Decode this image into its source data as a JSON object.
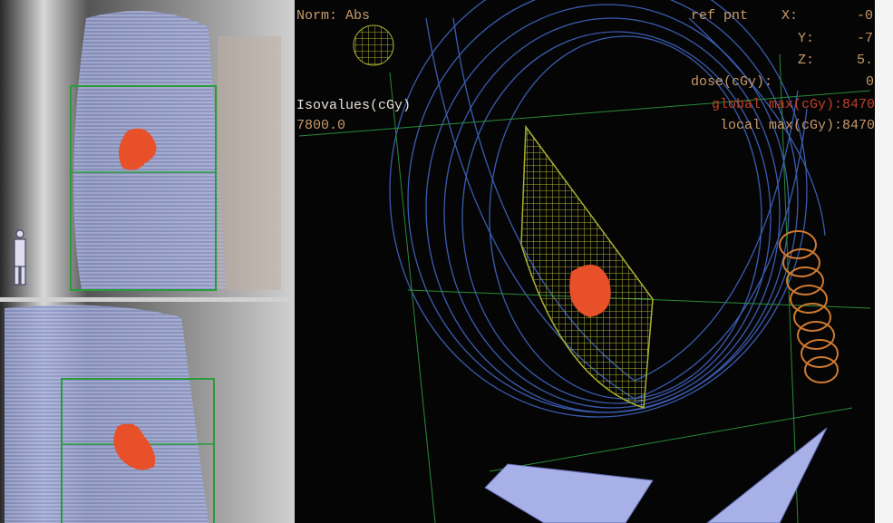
{
  "viewer": {
    "norm_label": "Norm: Abs",
    "isovalues": {
      "label": "Isovalues(cGy)",
      "value": "7800.0"
    },
    "ref_point": {
      "label": "ref pnt",
      "x_label": "X:",
      "x_value": "-0.",
      "y_label": "Y:",
      "y_value": "-7.",
      "z_label": "Z:",
      "z_value": "5."
    },
    "dose_label": "dose(cGy):",
    "dose_value": "0",
    "global_max": "global max(cGy):8470",
    "local_max": "local max(cGy):8470"
  }
}
